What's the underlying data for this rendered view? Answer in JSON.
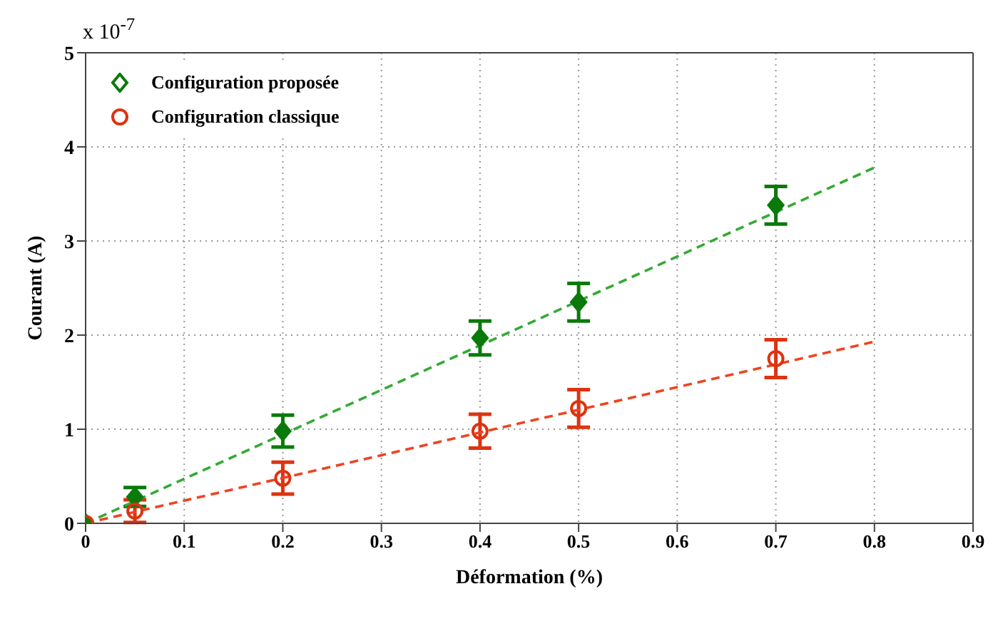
{
  "chart_data": {
    "type": "scatter",
    "xlabel": "Déformation (%)",
    "ylabel": "Courant (A)",
    "annotations": [
      "x 10$^{-7}$"
    ],
    "xlim": [
      0,
      0.9
    ],
    "xticks": [
      0,
      0.1,
      0.2,
      0.3,
      0.4,
      0.5,
      0.6,
      0.7,
      0.8,
      0.9
    ],
    "ylim": [
      0,
      5
    ],
    "yticks": [
      0,
      1,
      2,
      3,
      4,
      5
    ],
    "grid": true,
    "legend": "top left",
    "series": [
      {
        "name": "Configuration proposée",
        "color": "#0a7a0a",
        "marker": "diamond",
        "x": [
          0,
          0.05,
          0.2,
          0.4,
          0.5,
          0.7
        ],
        "values": [
          0,
          0.28,
          0.98,
          1.97,
          2.35,
          3.38
        ],
        "errors": [
          null,
          0.1,
          0.17,
          0.18,
          0.2,
          0.2
        ]
      },
      {
        "name": "Configuration classique",
        "color": "#dd3311",
        "marker": "circle",
        "x": [
          0,
          0.05,
          0.2,
          0.4,
          0.5,
          0.7
        ],
        "values": [
          0,
          0.13,
          0.48,
          0.98,
          1.22,
          1.75
        ],
        "errors": [
          null,
          0.12,
          0.17,
          0.18,
          0.2,
          0.2
        ]
      },
      {
        "type": "line",
        "color": "#33aa33",
        "line_style": "dashed",
        "marker": "none",
        "x": [
          0,
          0.8
        ],
        "values": [
          0,
          3.78
        ]
      },
      {
        "type": "line",
        "color": "#ee4422",
        "line_style": "dashed",
        "marker": "none",
        "x": [
          0,
          0.8
        ],
        "values": [
          0,
          1.93
        ]
      }
    ]
  }
}
